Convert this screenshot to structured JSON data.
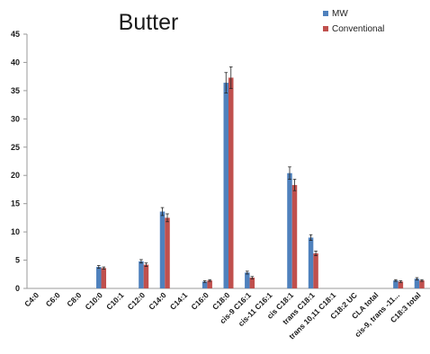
{
  "chart_data": {
    "type": "bar",
    "title": "Butter",
    "xlabel": "",
    "ylabel": "",
    "ylim": [
      0,
      45
    ],
    "yticks": [
      0,
      5,
      10,
      15,
      20,
      25,
      30,
      35,
      40,
      45
    ],
    "grid": false,
    "legend_position": "top-right",
    "categories": [
      "C4:0",
      "C6:0",
      "C8:0",
      "C10:0",
      "C10:1",
      "C12:0",
      "C14:0",
      "C14:1",
      "C16:0",
      "C18:0",
      "cis-9 C16:1",
      "cis-11 C16:1",
      "cis C18:1",
      "trans C18:1",
      "trans 10,11 C18:1",
      "C18:2 UC",
      "CLA total",
      "cis-9, trans -11...",
      "C18:3 total"
    ],
    "series": [
      {
        "name": "MW",
        "color": "#4f81bd",
        "values": [
          0,
          0,
          0,
          3.8,
          0,
          4.8,
          13.6,
          0,
          1.2,
          36.4,
          2.8,
          0,
          20.4,
          9.0,
          0,
          0,
          0,
          1.4,
          1.7
        ],
        "errors": [
          0,
          0,
          0,
          0.25,
          0,
          0.3,
          0.7,
          0,
          0.15,
          1.8,
          0.25,
          0,
          1.1,
          0.5,
          0,
          0,
          0,
          0.15,
          0.2
        ]
      },
      {
        "name": "Conventional",
        "color": "#c0504d",
        "values": [
          0,
          0,
          0,
          3.6,
          0,
          4.2,
          12.5,
          0,
          1.4,
          37.3,
          1.9,
          0,
          18.3,
          6.2,
          0,
          0,
          0,
          1.2,
          1.4
        ],
        "errors": [
          0,
          0,
          0,
          0.2,
          0,
          0.3,
          0.7,
          0,
          0.15,
          1.9,
          0.2,
          0,
          1.0,
          0.4,
          0,
          0,
          0,
          0.15,
          0.15
        ]
      }
    ]
  }
}
